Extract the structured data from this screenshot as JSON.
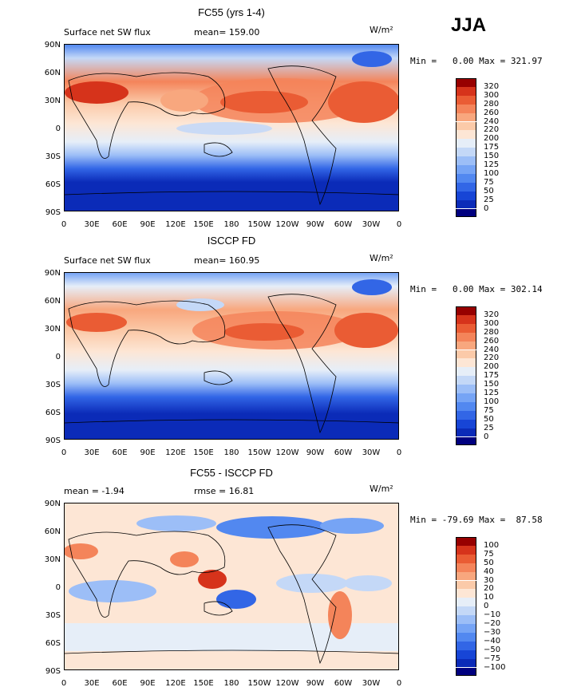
{
  "season": "JJA",
  "chart_data": [
    {
      "type": "heatmap",
      "title": "FC55 (yrs 1-4)",
      "field": "Surface net SW flux",
      "stat": "mean= 159.00",
      "units": "W/m²",
      "min_max": "Min =   0.00 Max = 321.97",
      "yticks": [
        "90N",
        "60N",
        "30N",
        "0",
        "30S",
        "60S",
        "90S"
      ],
      "xticks": [
        "0",
        "30E",
        "60E",
        "90E",
        "120E",
        "150E",
        "180",
        "150W",
        "120W",
        "90W",
        "60W",
        "30W",
        "0"
      ],
      "levels": [
        "0",
        "25",
        "50",
        "75",
        "100",
        "125",
        "150",
        "175",
        "200",
        "220",
        "240",
        "260",
        "280",
        "300",
        "320"
      ],
      "colors": [
        "#00007f",
        "#0b2bb8",
        "#1745d6",
        "#3266e6",
        "#5288f0",
        "#76a4f5",
        "#9cbef7",
        "#c4d8f7",
        "#e6eef8",
        "#fde6d5",
        "#fbcaa9",
        "#f8a77e",
        "#f4845a",
        "#ea5c34",
        "#d6331b",
        "#970000"
      ]
    },
    {
      "type": "heatmap",
      "title": "ISCCP FD",
      "field": "Surface net SW flux",
      "stat": "mean= 160.95",
      "units": "W/m²",
      "min_max": "Min =   0.00 Max = 302.14",
      "yticks": [
        "90N",
        "60N",
        "30N",
        "0",
        "30S",
        "60S",
        "90S"
      ],
      "xticks": [
        "0",
        "30E",
        "60E",
        "90E",
        "120E",
        "150E",
        "180",
        "150W",
        "120W",
        "90W",
        "60W",
        "30W",
        "0"
      ],
      "levels": [
        "0",
        "25",
        "50",
        "75",
        "100",
        "125",
        "150",
        "175",
        "200",
        "220",
        "240",
        "260",
        "280",
        "300",
        "320"
      ],
      "colors": [
        "#00007f",
        "#0b2bb8",
        "#1745d6",
        "#3266e6",
        "#5288f0",
        "#76a4f5",
        "#9cbef7",
        "#c4d8f7",
        "#e6eef8",
        "#fde6d5",
        "#fbcaa9",
        "#f8a77e",
        "#f4845a",
        "#ea5c34",
        "#d6331b",
        "#970000"
      ]
    },
    {
      "type": "heatmap",
      "title": "FC55 - ISCCP FD",
      "mean_text": "mean =  -1.94",
      "rmse_text": "rmse =  16.81",
      "units": "W/m²",
      "min_max": "Min = -79.69 Max =  87.58",
      "yticks": [
        "90N",
        "60N",
        "30N",
        "0",
        "30S",
        "60S",
        "90S"
      ],
      "xticks": [
        "0",
        "30E",
        "60E",
        "90E",
        "120E",
        "150E",
        "180",
        "150W",
        "120W",
        "90W",
        "60W",
        "30W",
        "0"
      ],
      "levels": [
        "−100",
        "−75",
        "−50",
        "−40",
        "−30",
        "−20",
        "−10",
        "0",
        "10",
        "20",
        "30",
        "40",
        "50",
        "75",
        "100"
      ],
      "colors": [
        "#00007f",
        "#0b2bb8",
        "#1745d6",
        "#3266e6",
        "#5288f0",
        "#76a4f5",
        "#9cbef7",
        "#c4d8f7",
        "#e6eef8",
        "#fde6d5",
        "#fbcaa9",
        "#f8a77e",
        "#f4845a",
        "#ea5c34",
        "#d6331b",
        "#970000"
      ]
    }
  ]
}
